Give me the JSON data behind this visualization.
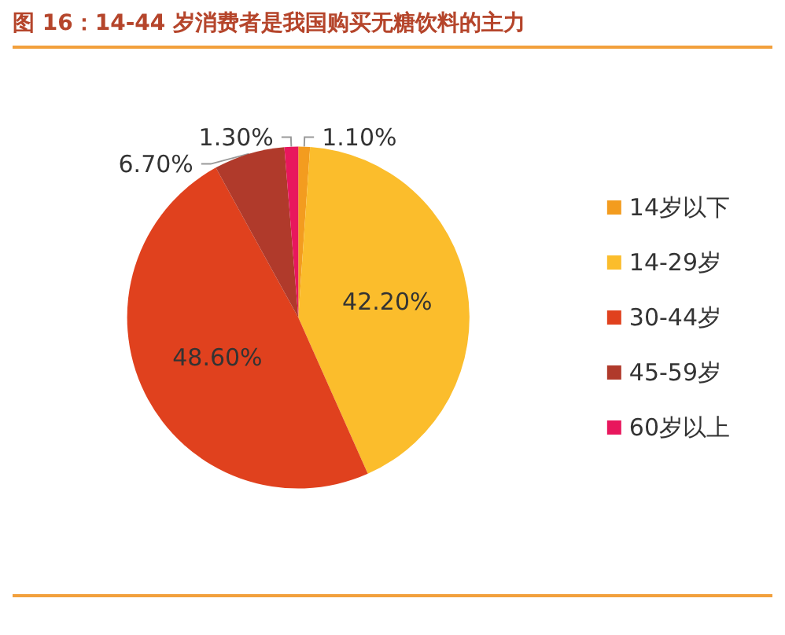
{
  "chart_data": {
    "type": "pie",
    "title": "图 16：14-44 岁消费者是我国购买无糖饮料的主力",
    "categories": [
      "14岁以下",
      "14-29岁",
      "30-44岁",
      "45-59岁",
      "60岁以上"
    ],
    "values": [
      1.1,
      42.2,
      48.6,
      6.7,
      1.3
    ],
    "colors": [
      "#f39c1f",
      "#fbbd2c",
      "#e0411e",
      "#b03a2b",
      "#e8175d"
    ],
    "value_labels": [
      "1.10%",
      "42.20%",
      "48.60%",
      "6.70%",
      "1.30%"
    ],
    "legend": "right"
  }
}
